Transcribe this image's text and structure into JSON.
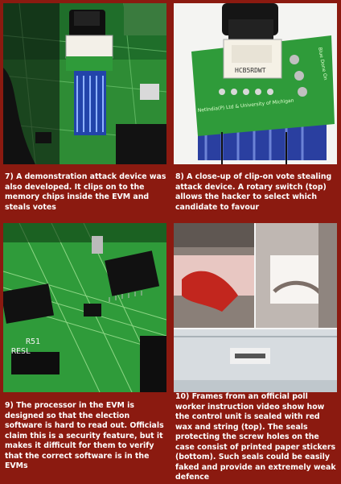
{
  "panels": [
    {
      "id": 7,
      "caption": "7) A demonstration attack device was also developed. It clips on to the memory chips inside the EVM and steals votes",
      "image": "evm-board-with-clip-device-photo"
    },
    {
      "id": 8,
      "caption": "8) A close-up of clip-on vote stealing attack device. A rotary switch (top) allows the hacker to select which candidate to favour",
      "image": "clip-on-device-closeup-photo",
      "board_text": [
        "HCB5RDWT",
        "NetIndia(P) Ltd & University of Michigan",
        "Blue Done On"
      ]
    },
    {
      "id": 9,
      "caption": "9) The processor in the EVM is designed so that the election software is hard to read out. Officials claim this is a security feature, but it makes it difficult for them to verify that the correct software is in the EVMs",
      "image": "evm-processor-board-photo",
      "board_text": [
        "R51",
        "RESL"
      ]
    },
    {
      "id": 10,
      "caption": "10) Frames from an official poll worker instruction video show how the control unit is sealed with red wax and string (top). The seals protecting the screw holes on the case consist of printed paper stickers (bottom). Such seals could be easily faked and provide an extremely weak defence",
      "image": "poll-worker-video-frames"
    }
  ],
  "colors": {
    "background": "#8b1a10",
    "caption_text": "#ffffff",
    "pcb_green": "#2f9b3a"
  }
}
